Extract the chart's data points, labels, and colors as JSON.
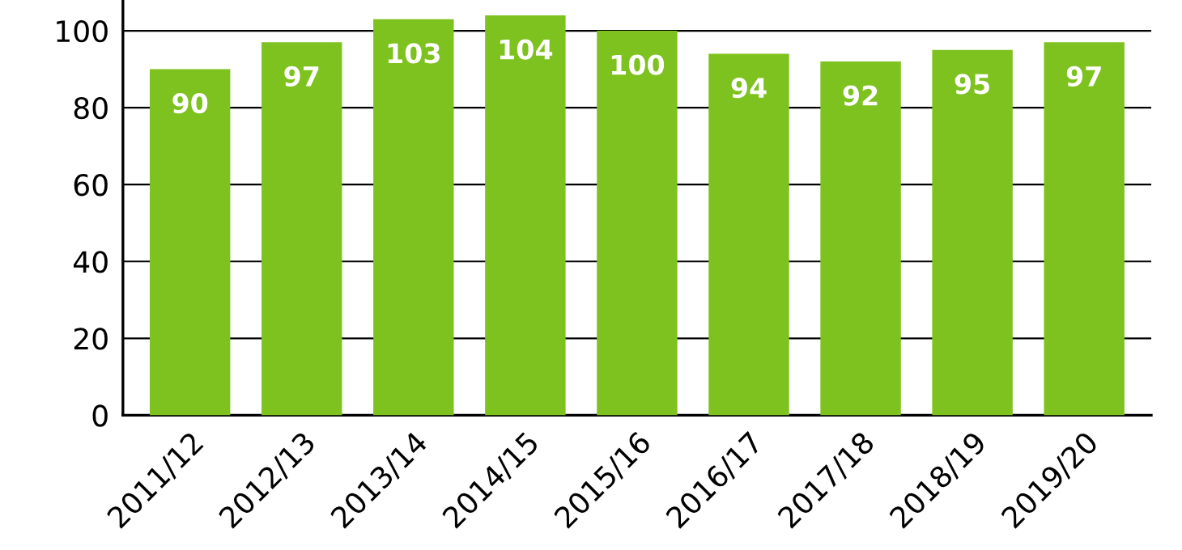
{
  "chart_data": {
    "type": "bar",
    "categories": [
      "2011/12",
      "2012/13",
      "2013/14",
      "2014/15",
      "2015/16",
      "2016/17",
      "2017/18",
      "2018/19",
      "2019/20"
    ],
    "values": [
      90,
      97,
      103,
      104,
      100,
      94,
      92,
      95,
      97
    ],
    "color": "#7dc21e",
    "ylim": [
      0,
      108
    ],
    "yticks": [
      0,
      20,
      40,
      60,
      80,
      100
    ],
    "grid": "y",
    "data_labels": true
  }
}
